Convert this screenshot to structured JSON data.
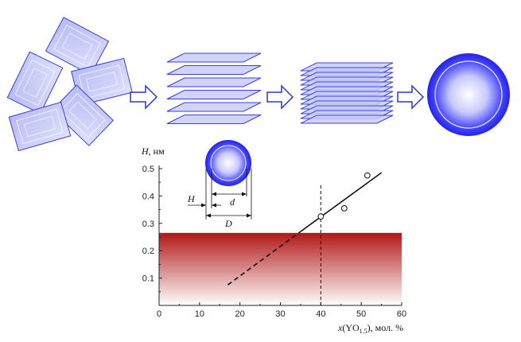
{
  "colors": {
    "plate_fill": "#c9ccf7",
    "plate_stroke": "#3a3fd8",
    "sphere_edge": "#2a2ee0",
    "stability_band": "#b01818",
    "arrow_fill": "#ffffff"
  },
  "icons": {
    "process_arrow": "right-arrow-icon",
    "nanoparticle": "sphere-icon"
  },
  "inset": {
    "label_H": "H",
    "label_d": "d",
    "label_D": "D"
  },
  "chart_data": {
    "type": "scatter",
    "xlabel_prefix": "x",
    "xlabel_open": "(YO",
    "xlabel_sub": "1.5",
    "xlabel_suffix": "), мол. %",
    "ylabel_var": "H",
    "ylabel_unit": ", нм",
    "xlim": [
      0,
      60
    ],
    "ylim": [
      0,
      0.5
    ],
    "x_ticks": [
      "0",
      "10",
      "20",
      "30",
      "40",
      "50",
      "60"
    ],
    "y_ticks": [
      "0.1",
      "0.2",
      "0.3",
      "0.4",
      "0.5"
    ],
    "grid": false,
    "points": [
      {
        "x": 40,
        "y": 0.325
      },
      {
        "x": 45.8,
        "y": 0.355
      },
      {
        "x": 51.5,
        "y": 0.475
      }
    ],
    "fit_line_solid": {
      "x": [
        35,
        55
      ],
      "y": [
        0.27,
        0.485
      ]
    },
    "fit_line_dashed": {
      "x": [
        17,
        35
      ],
      "y": [
        0.075,
        0.27
      ]
    },
    "vertical_marker_x": 40,
    "shaded_band_y": [
      0,
      0.265
    ]
  }
}
